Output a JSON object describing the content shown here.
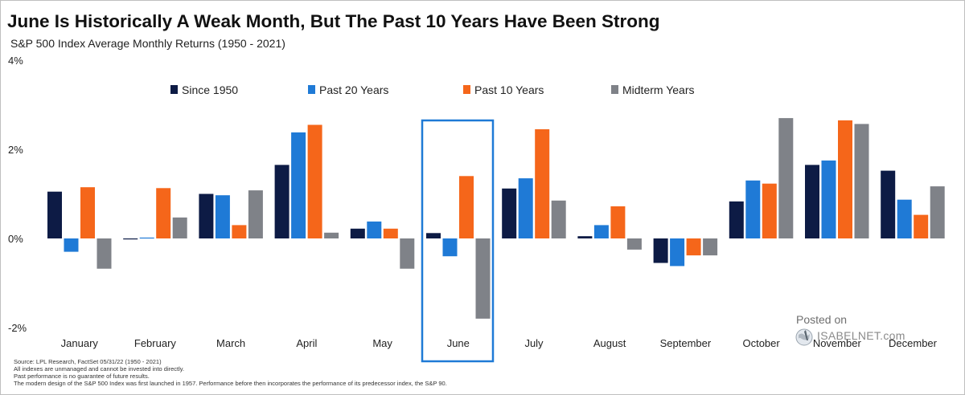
{
  "title": "June Is Historically A Weak Month, But The Past 10 Years Have Been Strong",
  "subtitle": "S&P 500 Index Average Monthly Returns (1950 - 2021)",
  "footnotes": [
    "Source: LPL Research, FactSet 05/31/22  (1950 - 2021)",
    "All indexes are unmanaged  and cannot be invested  into directly.",
    "Past performance is no guarantee of future results.",
    "The modern design of the S&P 500 Index was first launched in 1957. Performance before then incorporates the performance of its  predecessor index, the S&P 90."
  ],
  "watermark": {
    "posted": "Posted on",
    "site": "ISABELNET.com"
  },
  "colors": {
    "since_1950": "#0d1b45",
    "past_20": "#1f7ad6",
    "past_10": "#f5661a",
    "midterm": "#7f8288",
    "highlight_box": "#1f7ad6"
  },
  "chart_data": {
    "type": "bar",
    "categories": [
      "January",
      "February",
      "March",
      "April",
      "May",
      "June",
      "July",
      "August",
      "September",
      "October",
      "November",
      "December"
    ],
    "series": [
      {
        "name": "Since 1950",
        "values": [
          1.05,
          0.0,
          1.0,
          1.65,
          0.22,
          0.12,
          1.12,
          0.05,
          -0.55,
          0.83,
          1.65,
          1.52
        ]
      },
      {
        "name": "Past 20 Years",
        "values": [
          -0.3,
          0.02,
          0.97,
          2.38,
          0.38,
          -0.4,
          1.35,
          0.3,
          -0.62,
          1.3,
          1.75,
          0.87
        ]
      },
      {
        "name": "Past 10 Years",
        "values": [
          1.15,
          1.13,
          0.3,
          2.55,
          0.22,
          1.4,
          2.45,
          0.72,
          -0.38,
          1.23,
          2.65,
          0.53
        ]
      },
      {
        "name": "Midterm Years",
        "values": [
          -0.68,
          0.47,
          1.08,
          0.13,
          -0.68,
          -1.8,
          0.85,
          -0.25,
          -0.38,
          2.7,
          2.57,
          1.17
        ]
      }
    ],
    "yticks": [
      "4%",
      "2%",
      "0%",
      "-2%"
    ],
    "ytick_values": [
      4,
      2,
      0,
      -2
    ],
    "ylim": [
      -2,
      4
    ],
    "xlabel": "",
    "ylabel": "",
    "grid": false,
    "legend_position": "top",
    "highlight_category": "June"
  }
}
